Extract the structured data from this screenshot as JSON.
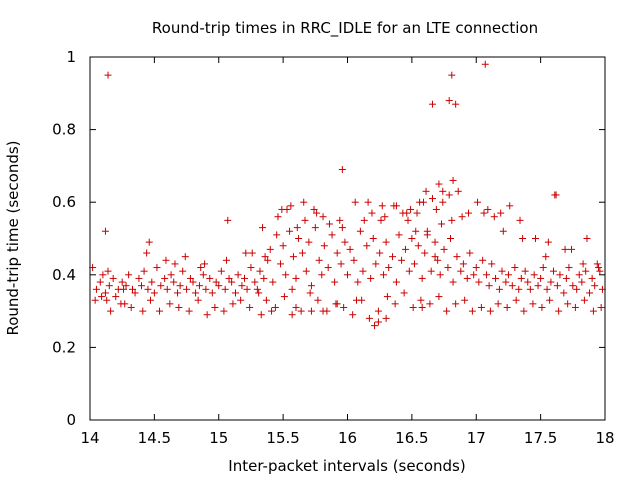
{
  "colors": {
    "background": "#ffffff",
    "axis": "#000000",
    "series": "#cc0000"
  },
  "chart_data": {
    "type": "scatter",
    "title": "Round-trip times in RRC_IDLE for an LTE connection",
    "xlabel": "Inter-packet intervals (seconds)",
    "ylabel": "Round-trip time (seconds)",
    "xlim": [
      14,
      18
    ],
    "ylim": [
      0,
      1
    ],
    "grid": false,
    "legend": "none",
    "x_ticks": [
      14,
      14.5,
      15,
      15.5,
      16,
      16.5,
      17,
      17.5,
      18
    ],
    "x_tick_labels": [
      "14",
      "14.5",
      "15",
      "15.5",
      "16",
      "16.5",
      "17",
      "17.5",
      "18"
    ],
    "y_ticks": [
      0,
      0.2,
      0.4,
      0.6,
      0.8,
      1
    ],
    "y_tick_labels": [
      "0",
      "0.2",
      "0.4",
      "0.6",
      "0.8",
      "1"
    ],
    "marker": "plus",
    "x": [
      14.02,
      14.05,
      14.08,
      14.1,
      14.12,
      14.14,
      14.15,
      14.18,
      14.2,
      14.22,
      14.25,
      14.28,
      14.3,
      14.33,
      14.35,
      14.38,
      14.4,
      14.42,
      14.45,
      14.48,
      14.5,
      14.52,
      14.55,
      14.58,
      14.6,
      14.63,
      14.65,
      14.68,
      14.7,
      14.72,
      14.75,
      14.78,
      14.8,
      14.82,
      14.85,
      14.88,
      14.9,
      14.93,
      14.95,
      14.98,
      15.0,
      15.02,
      15.05,
      15.08,
      15.1,
      15.13,
      15.15,
      15.18,
      15.2,
      15.22,
      15.25,
      15.28,
      15.3,
      15.32,
      15.35,
      15.38,
      15.4,
      15.42,
      15.45,
      15.48,
      15.5,
      15.52,
      15.55,
      15.58,
      15.6,
      15.62,
      15.65,
      15.68,
      15.7,
      15.72,
      15.75,
      15.78,
      15.8,
      15.82,
      15.85,
      15.88,
      15.9,
      15.92,
      15.95,
      15.98,
      16.0,
      16.02,
      16.05,
      16.08,
      16.1,
      16.12,
      16.15,
      16.18,
      16.2,
      16.22,
      16.25,
      16.28,
      16.3,
      16.32,
      16.35,
      16.38,
      16.4,
      16.42,
      16.45,
      16.48,
      16.5,
      16.52,
      16.55,
      16.58,
      16.6,
      16.62,
      16.65,
      16.68,
      16.7,
      16.72,
      16.75,
      16.78,
      16.8,
      16.82,
      16.85,
      16.88,
      16.9,
      16.93,
      16.95,
      16.98,
      17.0,
      17.02,
      17.05,
      17.08,
      17.1,
      17.12,
      17.15,
      17.18,
      17.2,
      17.23,
      17.25,
      17.28,
      17.3,
      17.33,
      17.35,
      17.38,
      17.4,
      17.42,
      17.45,
      17.48,
      17.5,
      17.52,
      17.55,
      17.58,
      17.6,
      17.63,
      17.65,
      17.68,
      17.7,
      17.72,
      17.75,
      17.78,
      17.8,
      17.82,
      17.85,
      17.88,
      17.9,
      17.92,
      17.95,
      17.98,
      14.04,
      14.09,
      14.16,
      14.24,
      14.32,
      14.41,
      14.47,
      14.54,
      14.62,
      14.69,
      14.77,
      14.84,
      14.91,
      14.97,
      15.04,
      15.11,
      15.17,
      15.24,
      15.31,
      15.37,
      15.44,
      15.51,
      15.57,
      15.64,
      15.71,
      15.77,
      15.84,
      15.91,
      15.97,
      16.04,
      16.11,
      16.17,
      16.24,
      16.31,
      16.37,
      16.44,
      16.51,
      16.57,
      16.64,
      16.71,
      16.77,
      16.84,
      16.91,
      16.97,
      17.04,
      17.11,
      17.17,
      17.24,
      17.31,
      17.37,
      17.44,
      17.51,
      17.57,
      17.64,
      17.71,
      17.77,
      17.84,
      17.91,
      17.97,
      14.13,
      14.27,
      14.44,
      14.59,
      14.74,
      14.89,
      15.06,
      15.21,
      15.36,
      15.53,
      15.66,
      15.81,
      15.96,
      16.13,
      16.27,
      16.43,
      16.59,
      16.73,
      16.89,
      17.06,
      17.21,
      17.36,
      17.54,
      17.69,
      17.83,
      17.96,
      14.14,
      14.12,
      14.26,
      14.46,
      14.66,
      14.86,
      15.07,
      15.26,
      15.34,
      15.46,
      15.49,
      15.56,
      15.61,
      15.67,
      15.74,
      15.76,
      15.86,
      15.94,
      16.06,
      16.16,
      16.19,
      16.26,
      16.29,
      16.36,
      16.46,
      16.49,
      16.56,
      16.61,
      16.66,
      16.69,
      16.74,
      16.79,
      16.81,
      16.86,
      16.94,
      17.01,
      17.09,
      17.14,
      17.19,
      17.26,
      17.34,
      17.46,
      17.56,
      17.62,
      17.74,
      17.86,
      17.94,
      15.96,
      16.66,
      16.71,
      16.79,
      16.81,
      16.84,
      17.07,
      17.61,
      16.82,
      16.74,
      16.54,
      16.53,
      16.47,
      16.38,
      16.62,
      16.68,
      16.3,
      16.21,
      15.33,
      15.41,
      15.57,
      15.72,
      15.6,
      15.81,
      15.92,
      16.07,
      16.24,
      16.58
    ],
    "y": [
      0.42,
      0.36,
      0.38,
      0.4,
      0.35,
      0.41,
      0.37,
      0.39,
      0.34,
      0.36,
      0.38,
      0.37,
      0.4,
      0.36,
      0.35,
      0.39,
      0.37,
      0.41,
      0.36,
      0.38,
      0.35,
      0.42,
      0.37,
      0.39,
      0.36,
      0.4,
      0.38,
      0.35,
      0.37,
      0.41,
      0.36,
      0.39,
      0.38,
      0.35,
      0.37,
      0.4,
      0.36,
      0.39,
      0.35,
      0.38,
      0.37,
      0.41,
      0.36,
      0.39,
      0.38,
      0.35,
      0.4,
      0.37,
      0.39,
      0.36,
      0.42,
      0.38,
      0.36,
      0.41,
      0.39,
      0.44,
      0.47,
      0.38,
      0.51,
      0.43,
      0.48,
      0.4,
      0.52,
      0.45,
      0.39,
      0.5,
      0.46,
      0.41,
      0.49,
      0.37,
      0.53,
      0.44,
      0.4,
      0.48,
      0.42,
      0.51,
      0.38,
      0.46,
      0.43,
      0.49,
      0.4,
      0.47,
      0.44,
      0.38,
      0.52,
      0.41,
      0.48,
      0.39,
      0.5,
      0.43,
      0.46,
      0.4,
      0.49,
      0.42,
      0.45,
      0.38,
      0.51,
      0.44,
      0.47,
      0.41,
      0.5,
      0.43,
      0.48,
      0.39,
      0.46,
      0.52,
      0.41,
      0.49,
      0.44,
      0.4,
      0.47,
      0.42,
      0.5,
      0.38,
      0.45,
      0.41,
      0.43,
      0.39,
      0.46,
      0.4,
      0.42,
      0.38,
      0.44,
      0.4,
      0.37,
      0.43,
      0.39,
      0.36,
      0.41,
      0.38,
      0.4,
      0.37,
      0.42,
      0.36,
      0.39,
      0.41,
      0.38,
      0.36,
      0.4,
      0.37,
      0.39,
      0.42,
      0.36,
      0.38,
      0.41,
      0.37,
      0.4,
      0.35,
      0.39,
      0.42,
      0.37,
      0.36,
      0.4,
      0.38,
      0.41,
      0.35,
      0.39,
      0.37,
      0.42,
      0.36,
      0.33,
      0.34,
      0.3,
      0.32,
      0.31,
      0.3,
      0.33,
      0.3,
      0.32,
      0.31,
      0.3,
      0.33,
      0.29,
      0.31,
      0.3,
      0.32,
      0.33,
      0.31,
      0.35,
      0.33,
      0.31,
      0.34,
      0.36,
      0.3,
      0.35,
      0.33,
      0.3,
      0.32,
      0.31,
      0.29,
      0.33,
      0.28,
      0.3,
      0.34,
      0.32,
      0.35,
      0.31,
      0.33,
      0.32,
      0.34,
      0.3,
      0.32,
      0.33,
      0.3,
      0.31,
      0.3,
      0.32,
      0.31,
      0.33,
      0.3,
      0.32,
      0.31,
      0.33,
      0.3,
      0.32,
      0.31,
      0.33,
      0.3,
      0.31,
      0.33,
      0.32,
      0.46,
      0.44,
      0.45,
      0.43,
      0.44,
      0.46,
      0.45,
      0.58,
      0.6,
      0.56,
      0.53,
      0.55,
      0.59,
      0.57,
      0.6,
      0.54,
      0.56,
      0.57,
      0.52,
      0.5,
      0.45,
      0.47,
      0.43,
      0.41,
      0.95,
      0.52,
      0.36,
      0.49,
      0.43,
      0.42,
      0.55,
      0.46,
      0.53,
      0.56,
      0.58,
      0.59,
      0.53,
      0.55,
      0.58,
      0.57,
      0.54,
      0.55,
      0.6,
      0.6,
      0.57,
      0.55,
      0.56,
      0.59,
      0.57,
      0.58,
      0.6,
      0.63,
      0.61,
      0.58,
      0.6,
      0.62,
      0.55,
      0.63,
      0.57,
      0.6,
      0.58,
      0.56,
      0.57,
      0.59,
      0.55,
      0.5,
      0.49,
      0.62,
      0.47,
      0.5,
      0.43,
      0.69,
      0.87,
      0.65,
      0.88,
      0.95,
      0.87,
      0.98,
      0.62,
      0.66,
      0.63,
      0.57,
      0.52,
      0.55,
      0.59,
      0.51,
      0.45,
      0.28,
      0.26,
      0.29,
      0.3,
      0.29,
      0.3,
      0.31,
      0.3,
      0.32,
      0.33,
      0.27,
      0.31
    ]
  }
}
